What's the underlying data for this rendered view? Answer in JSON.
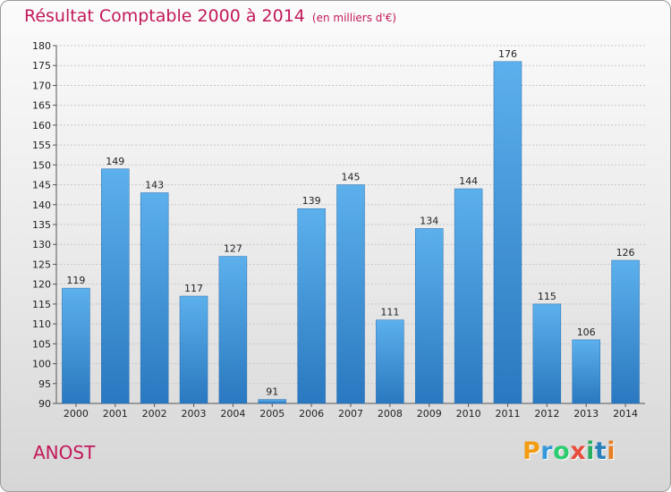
{
  "header": {
    "title": "Résultat Comptable 2000 à 2014",
    "subtitle": "(en milliers d'€)"
  },
  "footer": {
    "place": "ANOST",
    "logo_letters": [
      {
        "ch": "P",
        "color": "#f39c12"
      },
      {
        "ch": "r",
        "color": "#3498db"
      },
      {
        "ch": "o",
        "color": "#2ecc71"
      },
      {
        "ch": "x",
        "color": "#e74c3c"
      },
      {
        "ch": "i",
        "color": "#27ae60"
      },
      {
        "ch": "t",
        "color": "#2980b9"
      },
      {
        "ch": "i",
        "color": "#e67e22"
      }
    ]
  },
  "chart_data": {
    "type": "bar",
    "title": "Résultat Comptable 2000 à 2014",
    "subtitle": "(en milliers d'€)",
    "categories": [
      "2000",
      "2001",
      "2002",
      "2003",
      "2004",
      "2005",
      "2006",
      "2007",
      "2008",
      "2009",
      "2010",
      "2011",
      "2012",
      "2013",
      "2014"
    ],
    "values": [
      119,
      149,
      143,
      117,
      127,
      91,
      139,
      145,
      111,
      134,
      144,
      176,
      115,
      106,
      126
    ],
    "ylim": [
      90,
      180
    ],
    "yticks": [
      90,
      95,
      100,
      105,
      110,
      115,
      120,
      125,
      130,
      135,
      140,
      145,
      150,
      155,
      160,
      165,
      170,
      175,
      180
    ],
    "grid": true,
    "bar_color": "#4a9fe0",
    "bar_color_dark": "#2a78c0"
  }
}
